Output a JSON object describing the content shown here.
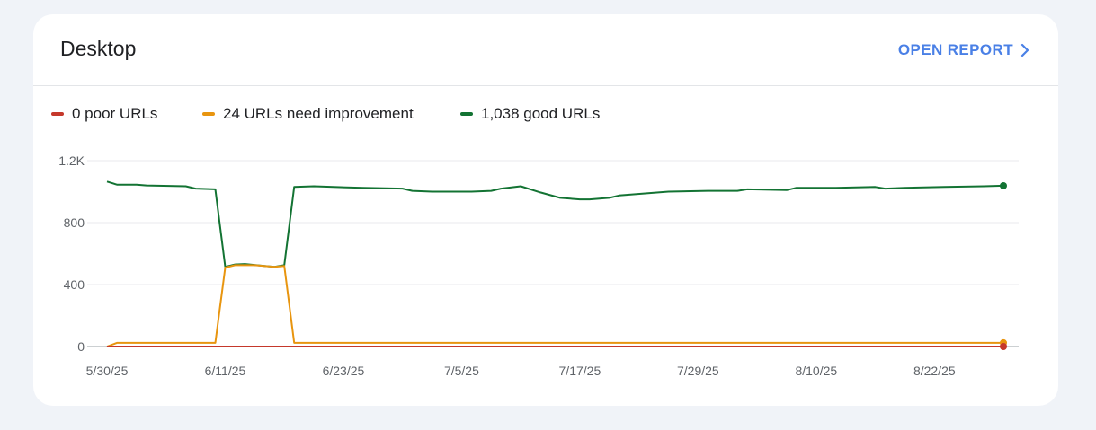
{
  "card": {
    "title": "Desktop",
    "open_report_label": "OPEN REPORT"
  },
  "colors": {
    "poor": "#c5382b",
    "needs_improvement": "#e8950f",
    "good": "#137333",
    "accent": "#4a80e6",
    "grid": "#e8eaed"
  },
  "chart_data": {
    "type": "line",
    "legend": [
      "0 poor URLs",
      "24 URLs need improvement",
      "1,038 good URLs"
    ],
    "x_tick_labels": [
      "5/30/25",
      "6/11/25",
      "6/23/25",
      "7/5/25",
      "7/17/25",
      "7/29/25",
      "8/10/25",
      "8/22/25"
    ],
    "y_tick_labels": [
      "0",
      "400",
      "800",
      "1.2K"
    ],
    "y_ticks": [
      0,
      400,
      800,
      1200
    ],
    "ylim": [
      0,
      1200
    ],
    "x_range": [
      "2025-05-30",
      "2025-08-29"
    ],
    "grid": true,
    "legend_position": "top-left",
    "series": [
      {
        "name": "poor",
        "points": [
          [
            "2025-05-30",
            0
          ],
          [
            "2025-08-29",
            0
          ]
        ]
      },
      {
        "name": "need improvement",
        "points": [
          [
            "2025-05-30",
            0
          ],
          [
            "2025-05-31",
            24
          ],
          [
            "2025-06-10",
            24
          ],
          [
            "2025-06-11",
            510
          ],
          [
            "2025-06-12",
            525
          ],
          [
            "2025-06-14",
            525
          ],
          [
            "2025-06-16",
            515
          ],
          [
            "2025-06-17",
            520
          ],
          [
            "2025-06-18",
            24
          ],
          [
            "2025-08-29",
            24
          ]
        ]
      },
      {
        "name": "good",
        "points": [
          [
            "2025-05-30",
            1065
          ],
          [
            "2025-05-31",
            1045
          ],
          [
            "2025-06-02",
            1045
          ],
          [
            "2025-06-03",
            1040
          ],
          [
            "2025-06-07",
            1035
          ],
          [
            "2025-06-08",
            1020
          ],
          [
            "2025-06-10",
            1015
          ],
          [
            "2025-06-11",
            515
          ],
          [
            "2025-06-12",
            530
          ],
          [
            "2025-06-13",
            533
          ],
          [
            "2025-06-15",
            520
          ],
          [
            "2025-06-16",
            515
          ],
          [
            "2025-06-17",
            525
          ],
          [
            "2025-06-18",
            1030
          ],
          [
            "2025-06-20",
            1035
          ],
          [
            "2025-06-22",
            1030
          ],
          [
            "2025-06-25",
            1025
          ],
          [
            "2025-06-29",
            1020
          ],
          [
            "2025-06-30",
            1005
          ],
          [
            "2025-07-02",
            1000
          ],
          [
            "2025-07-06",
            1000
          ],
          [
            "2025-07-08",
            1005
          ],
          [
            "2025-07-09",
            1020
          ],
          [
            "2025-07-11",
            1035
          ],
          [
            "2025-07-13",
            995
          ],
          [
            "2025-07-15",
            960
          ],
          [
            "2025-07-17",
            950
          ],
          [
            "2025-07-18",
            950
          ],
          [
            "2025-07-20",
            960
          ],
          [
            "2025-07-21",
            975
          ],
          [
            "2025-07-26",
            1000
          ],
          [
            "2025-07-30",
            1005
          ],
          [
            "2025-08-02",
            1005
          ],
          [
            "2025-08-03",
            1015
          ],
          [
            "2025-08-07",
            1010
          ],
          [
            "2025-08-08",
            1025
          ],
          [
            "2025-08-12",
            1025
          ],
          [
            "2025-08-16",
            1030
          ],
          [
            "2025-08-17",
            1020
          ],
          [
            "2025-08-19",
            1025
          ],
          [
            "2025-08-23",
            1030
          ],
          [
            "2025-08-27",
            1035
          ],
          [
            "2025-08-29",
            1038
          ]
        ]
      }
    ]
  }
}
